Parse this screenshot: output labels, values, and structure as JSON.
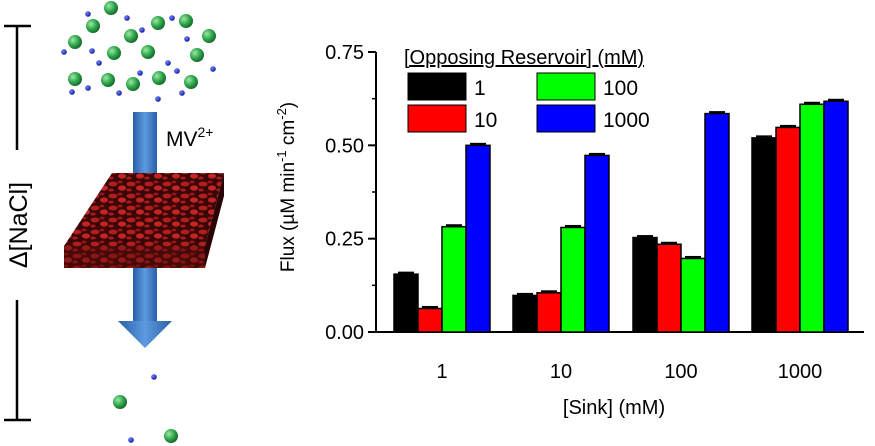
{
  "diagram": {
    "side_label": "Δ[NaCl]",
    "arrow_label_base": "MV",
    "arrow_label_sup": "2+",
    "colors": {
      "membrane": "#8b1a1a",
      "arrow": "#3a78c8",
      "big_particle": "#2ea84a",
      "small_particle": "#1a2fcc"
    }
  },
  "chart_data": {
    "type": "bar",
    "title": "",
    "xlabel": "[Sink] (mM)",
    "ylabel": "Flux (µM min⁻¹ cm⁻²)",
    "ylabel_parts": {
      "pre": "Flux (",
      "mu": "µ",
      "M": "M min",
      "sup1": "-1",
      "cm": " cm",
      "sup2": "-2",
      "post": ")"
    },
    "categories": [
      "1",
      "10",
      "100",
      "1000"
    ],
    "ylim": [
      0,
      0.75
    ],
    "yticks": [
      "0.00",
      "0.25",
      "0.50",
      "0.75"
    ],
    "ytick_values": [
      0,
      0.25,
      0.5,
      0.75
    ],
    "legend_title": "[Opposing Reservoir] (mM)",
    "legend_position": "top-left",
    "series": [
      {
        "name": "1",
        "color": "#000000",
        "values": [
          0.155,
          0.098,
          0.253,
          0.52
        ]
      },
      {
        "name": "10",
        "color": "#ff0000",
        "values": [
          0.063,
          0.105,
          0.235,
          0.548
        ]
      },
      {
        "name": "100",
        "color": "#00ff00",
        "values": [
          0.282,
          0.28,
          0.197,
          0.61
        ]
      },
      {
        "name": "1000",
        "color": "#0000ff",
        "values": [
          0.5,
          0.473,
          0.585,
          0.618
        ]
      }
    ]
  }
}
